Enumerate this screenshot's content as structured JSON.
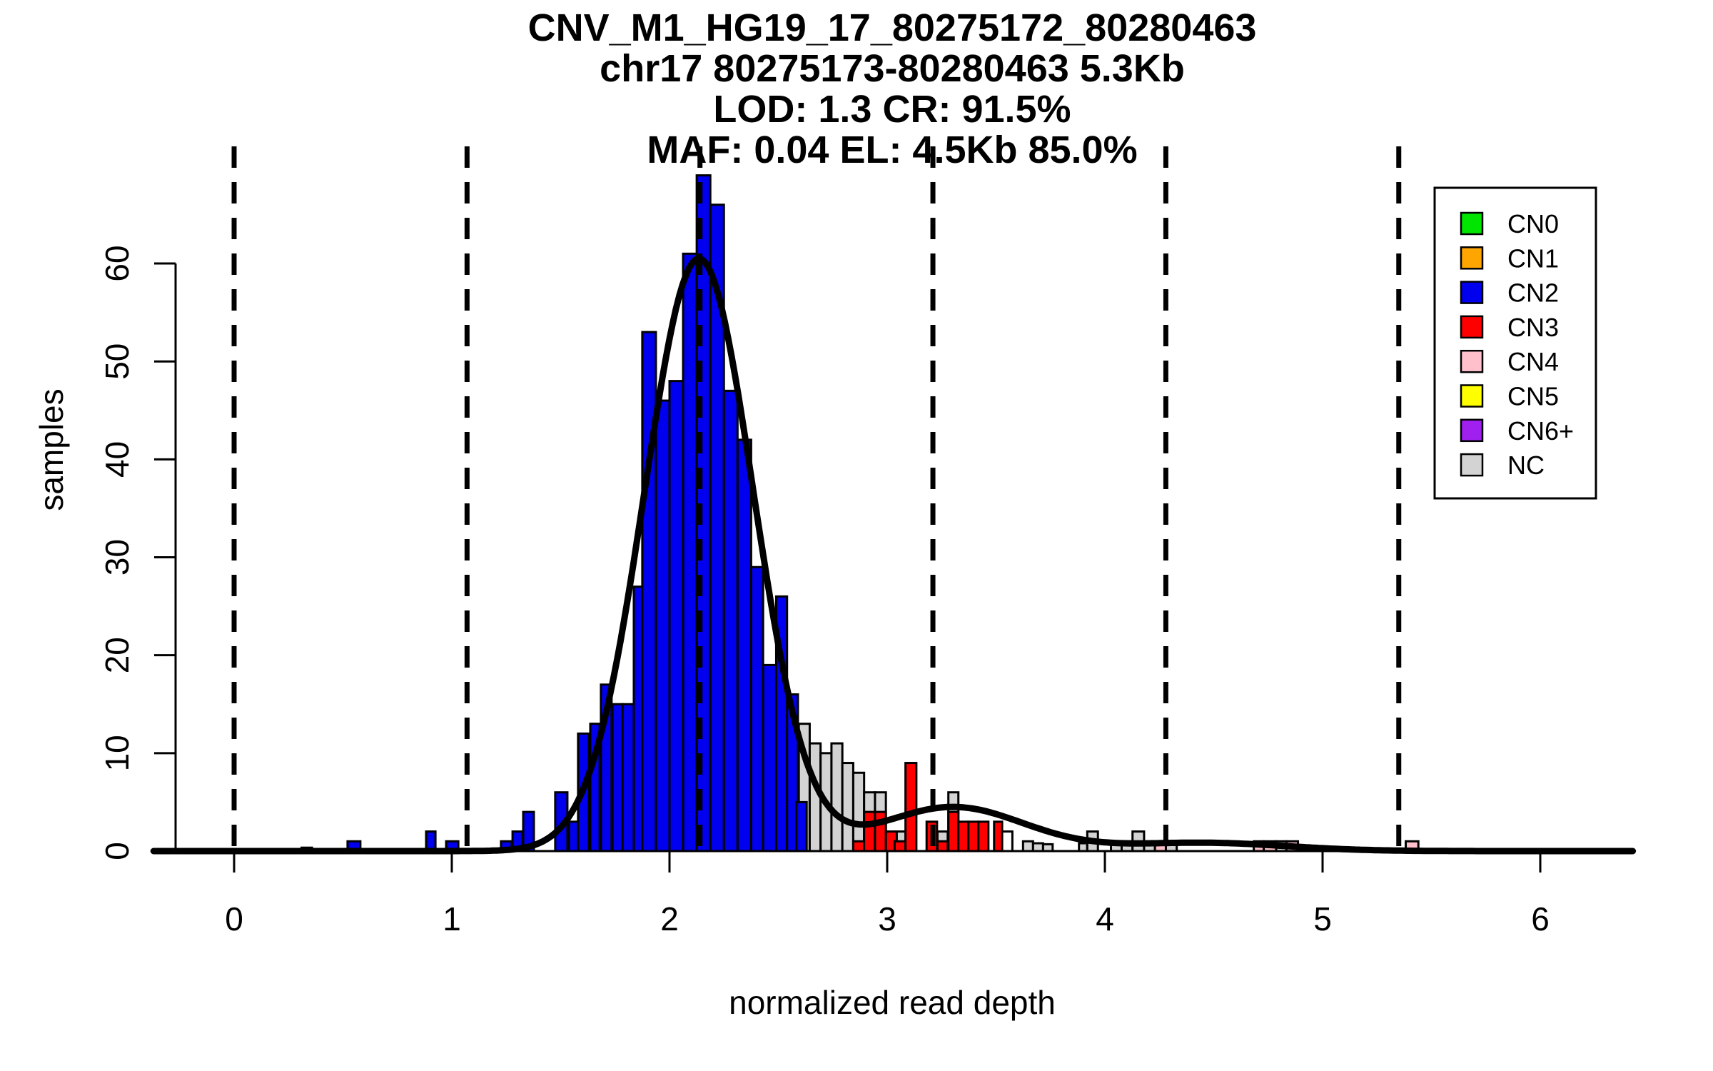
{
  "title": {
    "line1": "CNV_M1_HG19_17_80275172_80280463",
    "line2": "chr17 80275173-80280463 5.3Kb",
    "line3": "LOD: 1.3 CR: 91.5%",
    "line4": "MAF: 0.04 EL: 4.5Kb 85.0%"
  },
  "axes": {
    "x_label": "normalized read depth",
    "y_label": "samples",
    "x_tick_labels": [
      "0",
      "1",
      "2",
      "3",
      "4",
      "5",
      "6"
    ],
    "x_tick_values": [
      0,
      1,
      2,
      3,
      4,
      5,
      6
    ],
    "y_tick_labels": [
      "0",
      "10",
      "20",
      "30",
      "40",
      "50",
      "60"
    ],
    "y_tick_values": [
      0,
      10,
      20,
      30,
      40,
      50,
      60
    ]
  },
  "legend": {
    "items": [
      {
        "label": "CN0"
      },
      {
        "label": "CN1"
      },
      {
        "label": "CN2"
      },
      {
        "label": "CN3"
      },
      {
        "label": "CN4"
      },
      {
        "label": "CN5"
      },
      {
        "label": "CN6+"
      },
      {
        "label": "NC"
      }
    ]
  },
  "colors": {
    "CN0": "#00E600",
    "CN1": "#FFA500",
    "CN2": "#0000EE",
    "CN3": "#FF0000",
    "CN4": "#FFC0CB",
    "CN5": "#FFFF00",
    "CN6+": "#A020F0",
    "NC": "#D3D3D3",
    "WHITE": "#FFFFFF",
    "line": "#000000"
  },
  "chart_data": {
    "type": "bar",
    "subtype": "histogram-with-gaussian-mixture-fit",
    "xlabel": "normalized read depth",
    "ylabel": "samples",
    "xlim": [
      -0.37,
      6.43
    ],
    "ylim": [
      0,
      69
    ],
    "grid": false,
    "legend_position": "top-right",
    "bin_width_default": 0.0625,
    "dashed_lines_x": [
      0,
      1.07,
      2.14,
      3.21,
      4.28,
      5.35
    ],
    "curve_components": [
      {
        "amp": 60.5,
        "mean": 2.135,
        "sd": 0.25
      },
      {
        "amp": 4.5,
        "mean": 3.3,
        "sd": 0.33
      },
      {
        "amp": 0.85,
        "mean": 4.45,
        "sd": 0.38
      }
    ],
    "bars": [
      {
        "x": 0.31,
        "w": 0.048,
        "h": 0.35,
        "cn": "WHITE"
      },
      {
        "x": 2.594,
        "w": 0.05,
        "h": 13,
        "cn": "NC"
      },
      {
        "x": 2.644,
        "w": 0.05,
        "h": 11,
        "cn": "NC"
      },
      {
        "x": 2.694,
        "w": 0.05,
        "h": 10,
        "cn": "NC"
      },
      {
        "x": 2.744,
        "w": 0.05,
        "h": 11,
        "cn": "NC"
      },
      {
        "x": 2.794,
        "w": 0.05,
        "h": 9,
        "cn": "NC"
      },
      {
        "x": 2.844,
        "w": 0.05,
        "h": 8,
        "cn": "NC"
      },
      {
        "x": 2.894,
        "w": 0.05,
        "h": 6,
        "cn": "NC"
      },
      {
        "x": 2.944,
        "w": 0.05,
        "h": 6,
        "cn": "NC"
      },
      {
        "x": 3.034,
        "w": 0.05,
        "h": 2,
        "cn": "NC"
      },
      {
        "x": 3.231,
        "w": 0.047,
        "h": 2,
        "cn": "NC"
      },
      {
        "x": 3.281,
        "w": 0.046,
        "h": 6,
        "cn": "NC"
      },
      {
        "x": 3.528,
        "w": 0.047,
        "h": 2,
        "cn": "WHITE"
      },
      {
        "x": 3.624,
        "w": 0.046,
        "h": 1,
        "cn": "NC"
      },
      {
        "x": 3.67,
        "w": 0.046,
        "h": 0.8,
        "cn": "NC"
      },
      {
        "x": 3.716,
        "w": 0.044,
        "h": 0.7,
        "cn": "NC"
      },
      {
        "x": 3.881,
        "w": 0.038,
        "h": 0.8,
        "cn": "NC"
      },
      {
        "x": 3.919,
        "w": 0.049,
        "h": 2,
        "cn": "NC"
      },
      {
        "x": 4.028,
        "w": 0.049,
        "h": 1,
        "cn": "NC"
      },
      {
        "x": 4.077,
        "w": 0.05,
        "h": 1,
        "cn": "NC"
      },
      {
        "x": 4.127,
        "w": 0.053,
        "h": 2,
        "cn": "NC"
      },
      {
        "x": 4.18,
        "w": 0.05,
        "h": 0.9,
        "cn": "NC"
      },
      {
        "x": 4.28,
        "w": 0.05,
        "h": 0.9,
        "cn": "NC"
      },
      {
        "x": 4.787,
        "w": 0.047,
        "h": 1,
        "cn": "NC"
      },
      {
        "x": 0.521,
        "w": 0.059,
        "h": 1,
        "cn": "CN2"
      },
      {
        "x": 0.882,
        "w": 0.043,
        "h": 2,
        "cn": "CN2"
      },
      {
        "x": 0.974,
        "w": 0.056,
        "h": 1,
        "cn": "CN2"
      },
      {
        "x": 1.226,
        "w": 0.049,
        "h": 1,
        "cn": "CN2"
      },
      {
        "x": 1.279,
        "w": 0.046,
        "h": 2,
        "cn": "CN2"
      },
      {
        "x": 1.328,
        "w": 0.049,
        "h": 4,
        "cn": "CN2"
      },
      {
        "x": 1.475,
        "w": 0.056,
        "h": 6,
        "cn": "CN2"
      },
      {
        "x": 1.538,
        "w": 0.042,
        "h": 3,
        "cn": "CN2"
      },
      {
        "x": 1.58,
        "w": 0.05,
        "h": 12,
        "cn": "CN2"
      },
      {
        "x": 1.636,
        "w": 0.043,
        "h": 13,
        "cn": "CN2"
      },
      {
        "x": 1.685,
        "w": 0.049,
        "h": 17,
        "cn": "CN2"
      },
      {
        "x": 1.738,
        "w": 0.046,
        "h": 15,
        "cn": "CN2"
      },
      {
        "x": 1.784,
        "w": 0.052,
        "h": 15,
        "cn": "CN2"
      },
      {
        "x": 1.836,
        "w": 0.039,
        "h": 27,
        "cn": "CN2"
      },
      {
        "x": 1.875,
        "w": 0.0625,
        "h": 53,
        "cn": "CN2"
      },
      {
        "x": 1.9375,
        "w": 0.0625,
        "h": 46,
        "cn": "CN2"
      },
      {
        "x": 2.0,
        "w": 0.0625,
        "h": 48,
        "cn": "CN2"
      },
      {
        "x": 2.0625,
        "w": 0.0625,
        "h": 61,
        "cn": "CN2"
      },
      {
        "x": 2.125,
        "w": 0.0625,
        "h": 69,
        "cn": "CN2"
      },
      {
        "x": 2.1875,
        "w": 0.0625,
        "h": 66,
        "cn": "CN2"
      },
      {
        "x": 2.25,
        "w": 0.0625,
        "h": 47,
        "cn": "CN2"
      },
      {
        "x": 2.3125,
        "w": 0.0625,
        "h": 42,
        "cn": "CN2"
      },
      {
        "x": 2.375,
        "w": 0.055,
        "h": 29,
        "cn": "CN2"
      },
      {
        "x": 2.43,
        "w": 0.06,
        "h": 19,
        "cn": "CN2"
      },
      {
        "x": 2.49,
        "w": 0.05,
        "h": 26,
        "cn": "CN2"
      },
      {
        "x": 2.54,
        "w": 0.05,
        "h": 16,
        "cn": "CN2"
      },
      {
        "x": 2.583,
        "w": 0.047,
        "h": 5,
        "cn": "CN2"
      },
      {
        "x": 2.844,
        "w": 0.05,
        "h": 1,
        "cn": "CN3"
      },
      {
        "x": 2.894,
        "w": 0.05,
        "h": 4,
        "cn": "CN3"
      },
      {
        "x": 2.944,
        "w": 0.05,
        "h": 4,
        "cn": "CN3"
      },
      {
        "x": 2.994,
        "w": 0.05,
        "h": 2,
        "cn": "CN3"
      },
      {
        "x": 3.034,
        "w": 0.05,
        "h": 1,
        "cn": "CN3"
      },
      {
        "x": 3.084,
        "w": 0.05,
        "h": 9,
        "cn": "CN3"
      },
      {
        "x": 3.181,
        "w": 0.048,
        "h": 3,
        "cn": "CN3"
      },
      {
        "x": 3.231,
        "w": 0.047,
        "h": 1,
        "cn": "CN3"
      },
      {
        "x": 3.281,
        "w": 0.046,
        "h": 4,
        "cn": "CN3"
      },
      {
        "x": 3.327,
        "w": 0.046,
        "h": 3,
        "cn": "CN3"
      },
      {
        "x": 3.373,
        "w": 0.046,
        "h": 3,
        "cn": "CN3"
      },
      {
        "x": 3.419,
        "w": 0.046,
        "h": 3,
        "cn": "CN3"
      },
      {
        "x": 3.491,
        "w": 0.037,
        "h": 3,
        "cn": "CN3"
      },
      {
        "x": 4.23,
        "w": 0.05,
        "h": 1,
        "cn": "CN4"
      },
      {
        "x": 4.684,
        "w": 0.046,
        "h": 1,
        "cn": "CN4"
      },
      {
        "x": 4.73,
        "w": 0.057,
        "h": 1,
        "cn": "CN4"
      },
      {
        "x": 4.834,
        "w": 0.053,
        "h": 1,
        "cn": "CN4"
      },
      {
        "x": 5.382,
        "w": 0.058,
        "h": 1,
        "cn": "CN4"
      }
    ]
  }
}
